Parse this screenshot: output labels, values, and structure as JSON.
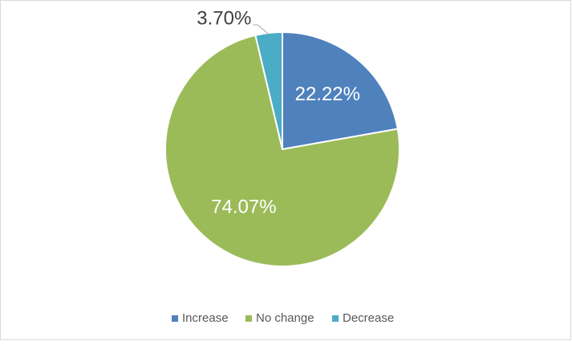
{
  "chart_data": {
    "type": "pie",
    "categories": [
      "Increase",
      "No change",
      "Decrease"
    ],
    "values": [
      22.22,
      74.07,
      3.7
    ],
    "value_labels": [
      "22.22%",
      "74.07%",
      "3.70%"
    ],
    "colors": [
      "#4f81bd",
      "#9bbb59",
      "#4bacc6"
    ],
    "legend": "bottom"
  }
}
